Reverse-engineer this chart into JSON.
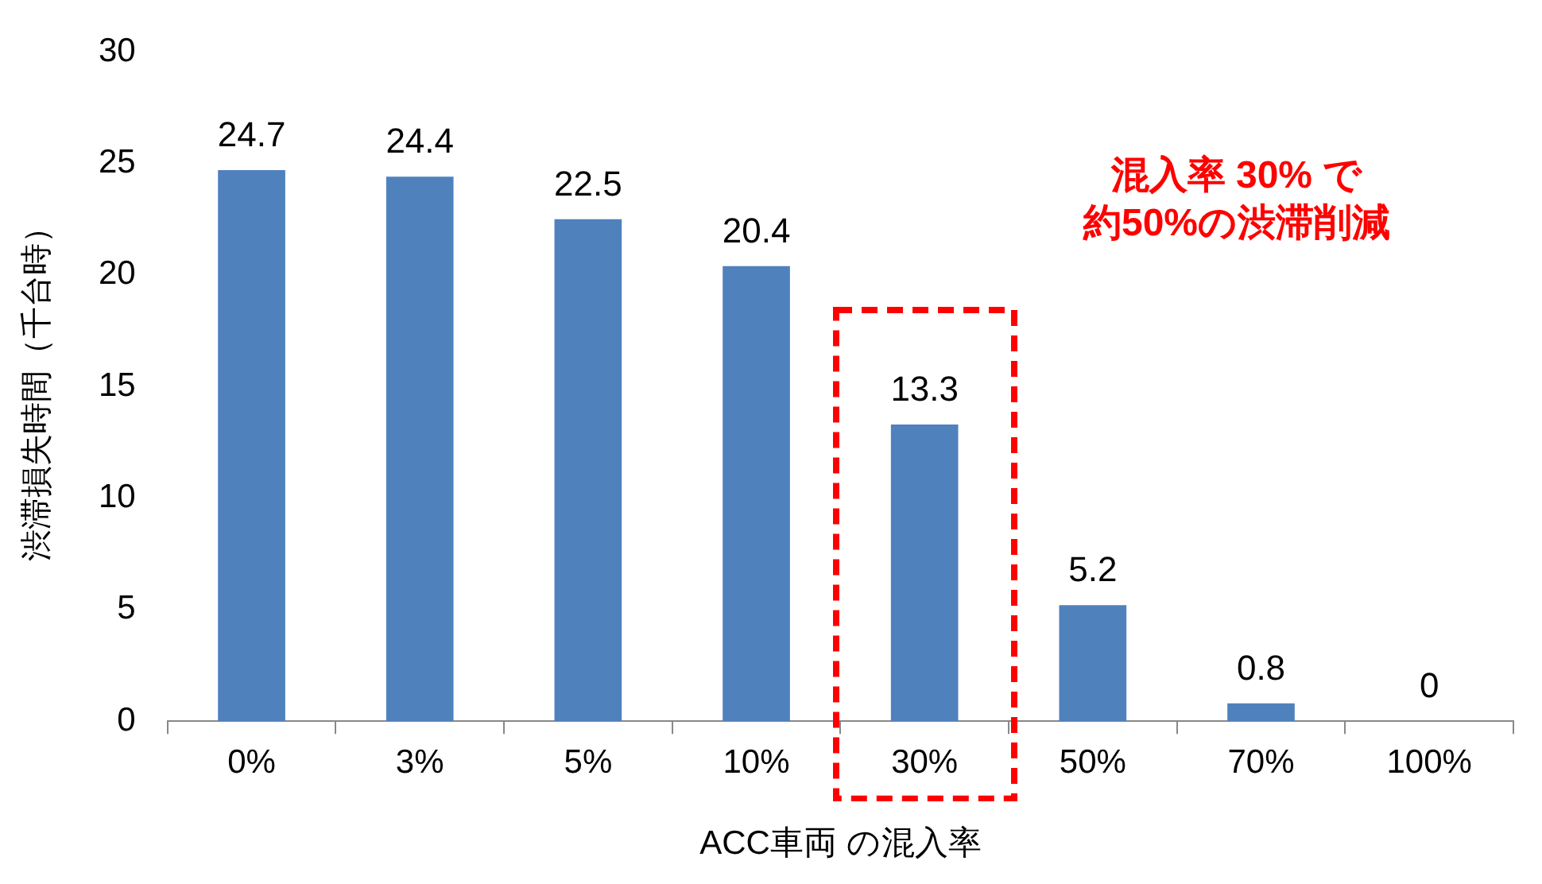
{
  "chart_data": {
    "type": "bar",
    "xlabel": "ACC車両 の混入率",
    "ylabel": "渋滞損失時間（千台時）",
    "categories": [
      "0%",
      "3%",
      "5%",
      "10%",
      "30%",
      "50%",
      "70%",
      "100%"
    ],
    "values": [
      24.7,
      24.4,
      22.5,
      20.4,
      13.3,
      5.2,
      0.8,
      0
    ],
    "color": "#4f81bd",
    "ylim": [
      0,
      30
    ],
    "yticks": [
      0,
      5,
      10,
      15,
      20,
      25,
      30
    ],
    "data_labels": true,
    "annotations": [
      "混入率 30% で",
      "約50%の渋滞削減"
    ]
  }
}
